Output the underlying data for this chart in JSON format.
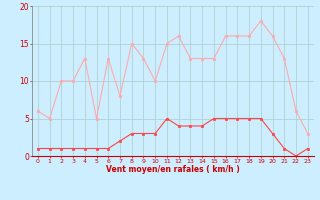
{
  "x": [
    0,
    1,
    2,
    3,
    4,
    5,
    6,
    7,
    8,
    9,
    10,
    11,
    12,
    13,
    14,
    15,
    16,
    17,
    18,
    19,
    20,
    21,
    22,
    23
  ],
  "mean_wind": [
    1,
    1,
    1,
    1,
    1,
    1,
    1,
    2,
    3,
    3,
    3,
    5,
    4,
    4,
    4,
    5,
    5,
    5,
    5,
    5,
    3,
    1,
    0,
    1
  ],
  "gust_wind": [
    6,
    5,
    10,
    10,
    13,
    5,
    13,
    8,
    15,
    13,
    10,
    15,
    16,
    13,
    13,
    13,
    16,
    16,
    16,
    18,
    16,
    13,
    6,
    3
  ],
  "line_color_mean": "#ff4444",
  "line_color_gust": "#ffaaaa",
  "bg_color": "#cceeff",
  "grid_color": "#aacccc",
  "axis_color": "#cc0000",
  "text_color": "#cc0000",
  "xlabel": "Vent moyen/en rafales ( km/h )",
  "ylim": [
    0,
    20
  ],
  "xlim": [
    -0.5,
    23.5
  ],
  "yticks": [
    0,
    5,
    10,
    15,
    20
  ],
  "xticks": [
    0,
    1,
    2,
    3,
    4,
    5,
    6,
    7,
    8,
    9,
    10,
    11,
    12,
    13,
    14,
    15,
    16,
    17,
    18,
    19,
    20,
    21,
    22,
    23
  ]
}
